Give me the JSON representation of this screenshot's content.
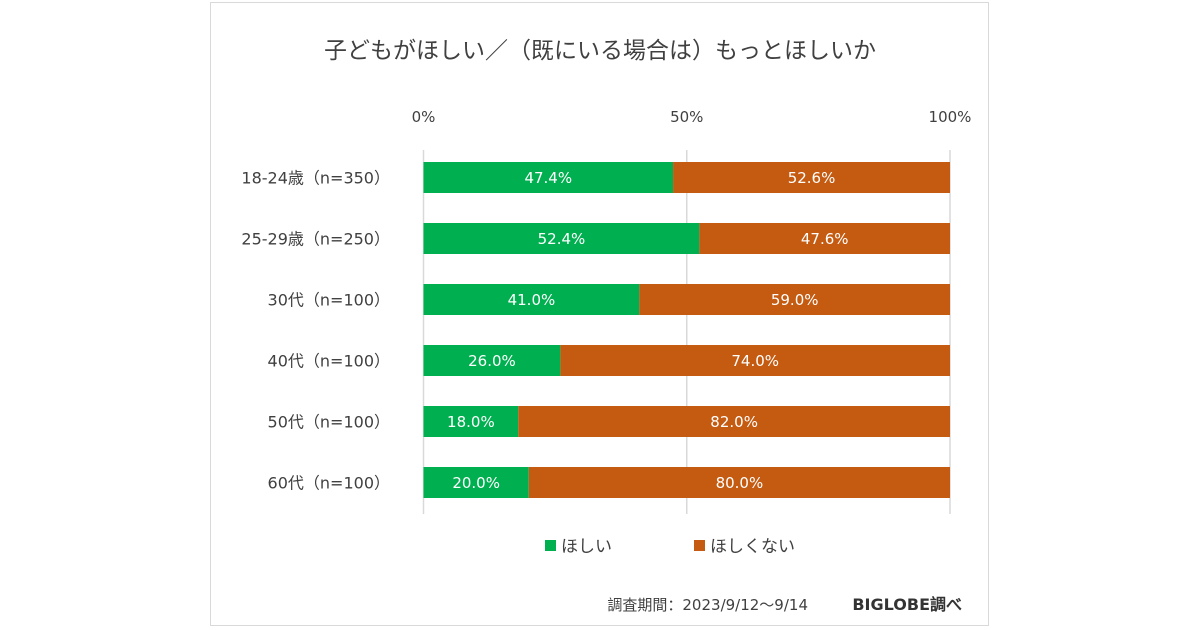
{
  "chart_data": {
    "type": "bar",
    "orientation": "horizontal",
    "stacked": "100%",
    "title": "子どもがほしい／（既にいる場合は）もっとほしいか",
    "xlabel": "",
    "ylabel": "",
    "xlim": [
      0,
      100
    ],
    "x_ticks": [
      "0%",
      "50%",
      "100%"
    ],
    "x_tick_values": [
      0,
      50,
      100
    ],
    "grid": true,
    "legend_position": "bottom",
    "categories": [
      "18-24歳（n=350）",
      "25-29歳（n=250）",
      "30代（n=100）",
      "40代（n=100）",
      "50代（n=100）",
      "60代（n=100）"
    ],
    "series": [
      {
        "name": "ほしい",
        "color": "#00B050",
        "values": [
          47.4,
          52.4,
          41.0,
          26.0,
          18.0,
          20.0
        ],
        "labels": [
          "47.4%",
          "52.4%",
          "41.0%",
          "26.0%",
          "18.0%",
          "20.0%"
        ]
      },
      {
        "name": "ほしくない",
        "color": "#C55A11",
        "values": [
          52.6,
          47.6,
          59.0,
          74.0,
          82.0,
          80.0
        ],
        "labels": [
          "52.6%",
          "47.6%",
          "59.0%",
          "74.0%",
          "82.0%",
          "80.0%"
        ]
      }
    ]
  },
  "footer": {
    "period": "調査期間：2023/9/12～9/14",
    "source": "BIGLOBE調べ"
  }
}
